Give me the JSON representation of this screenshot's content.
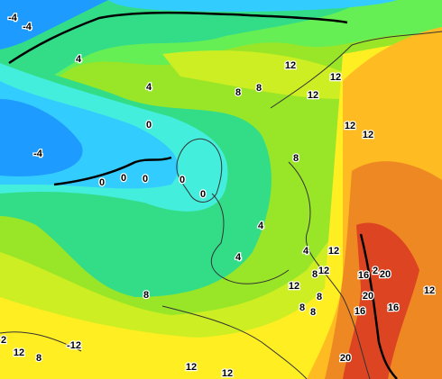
{
  "map": {
    "labels": [
      -4,
      -4,
      4,
      4,
      12,
      12,
      12,
      8,
      8,
      0,
      -4,
      12,
      12,
      0,
      0,
      0,
      0,
      0,
      8,
      4,
      4,
      12,
      4,
      12,
      8,
      16,
      2,
      20,
      12,
      8,
      12,
      8,
      20,
      16,
      16,
      8,
      8,
      12,
      8,
      -12,
      20,
      12,
      12,
      2
    ]
  }
}
